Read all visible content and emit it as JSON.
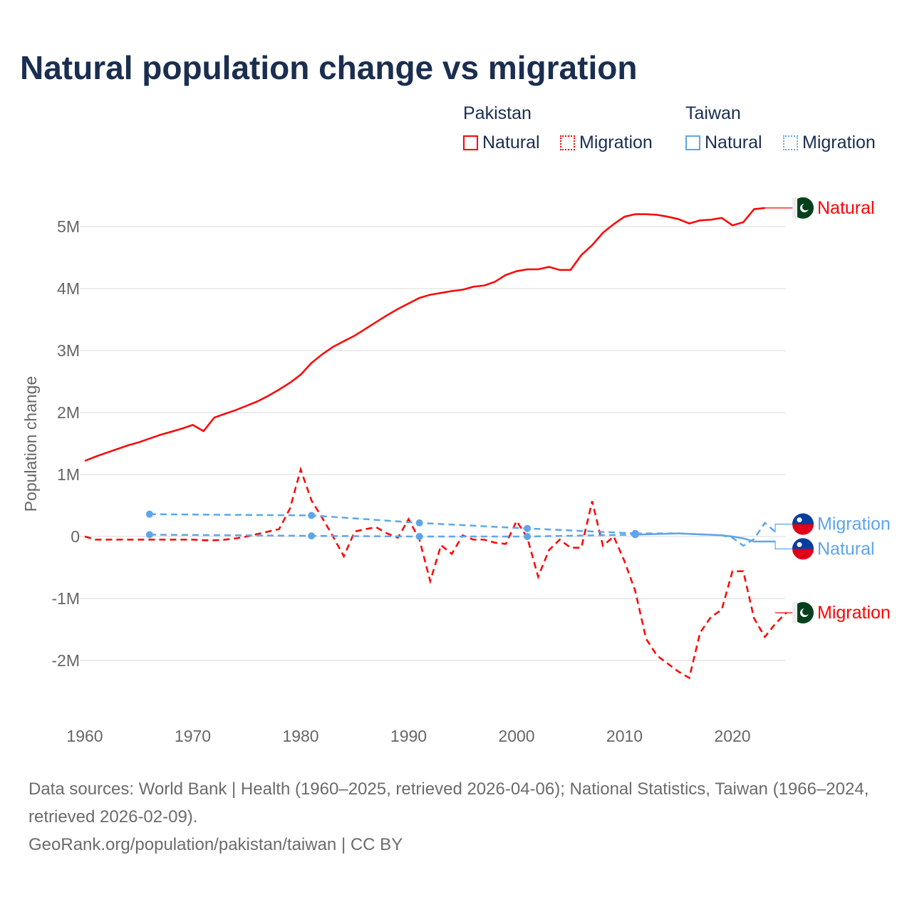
{
  "title": "Natural population change vs migration",
  "legend": {
    "groups": [
      {
        "name": "Pakistan",
        "color": "#ff0000",
        "items": [
          "Natural",
          "Migration"
        ]
      },
      {
        "name": "Taiwan",
        "color": "#5ea5ea",
        "items": [
          "Natural",
          "Migration"
        ]
      }
    ]
  },
  "source": {
    "line1": "Data sources: World Bank | Health (1960–2025, retrieved 2026-04-06); National Statistics, Taiwan (1966–2024, retrieved 2026-02-09).",
    "line2": "GeoRank.org/population/pakistan/taiwan | CC BY"
  },
  "chart_data": {
    "type": "line",
    "title": "Natural population change vs migration",
    "ylabel": "Population change",
    "xlabel": "",
    "xlim": [
      1960,
      2025
    ],
    "ylim": [
      -2.9,
      5.6
    ],
    "y_unit": "millions",
    "x_ticks": [
      1960,
      1970,
      1980,
      1990,
      2000,
      2010,
      2020
    ],
    "y_ticks": [
      {
        "v": -2,
        "label": "-2M"
      },
      {
        "v": -1,
        "label": "-1M"
      },
      {
        "v": 0,
        "label": "0"
      },
      {
        "v": 1,
        "label": "1M"
      },
      {
        "v": 2,
        "label": "2M"
      },
      {
        "v": 3,
        "label": "3M"
      },
      {
        "v": 4,
        "label": "4M"
      },
      {
        "v": 5,
        "label": "5M"
      }
    ],
    "grid": true,
    "series": [
      {
        "name": "Pakistan Natural",
        "label": "Natural",
        "country": "Pakistan",
        "color": "#ff0000",
        "dash": false,
        "x": [
          1960,
          1961,
          1962,
          1963,
          1964,
          1965,
          1966,
          1967,
          1968,
          1969,
          1970,
          1971,
          1972,
          1973,
          1974,
          1975,
          1976,
          1977,
          1978,
          1979,
          1980,
          1981,
          1982,
          1983,
          1984,
          1985,
          1986,
          1987,
          1988,
          1989,
          1990,
          1991,
          1992,
          1993,
          1994,
          1995,
          1996,
          1997,
          1998,
          1999,
          2000,
          2001,
          2002,
          2003,
          2004,
          2005,
          2006,
          2007,
          2008,
          2009,
          2010,
          2011,
          2012,
          2013,
          2014,
          2015,
          2016,
          2017,
          2018,
          2019,
          2020,
          2021,
          2022,
          2023
        ],
        "y": [
          1.22,
          1.29,
          1.35,
          1.41,
          1.47,
          1.52,
          1.58,
          1.64,
          1.69,
          1.74,
          1.8,
          1.7,
          1.92,
          1.98,
          2.04,
          2.11,
          2.18,
          2.27,
          2.37,
          2.48,
          2.61,
          2.8,
          2.94,
          3.06,
          3.15,
          3.24,
          3.35,
          3.46,
          3.57,
          3.67,
          3.76,
          3.85,
          3.9,
          3.93,
          3.96,
          3.98,
          4.03,
          4.05,
          4.11,
          4.22,
          4.28,
          4.31,
          4.31,
          4.35,
          4.3,
          4.3,
          4.54,
          4.7,
          4.9,
          5.04,
          5.16,
          5.2,
          5.2,
          5.19,
          5.16,
          5.12,
          5.05,
          5.1,
          5.11,
          5.14,
          5.02,
          5.07,
          5.28,
          5.3
        ]
      },
      {
        "name": "Pakistan Migration",
        "label": "Migration",
        "country": "Pakistan",
        "color": "#ff0000",
        "dash": true,
        "x": [
          1960,
          1961,
          1962,
          1963,
          1964,
          1965,
          1966,
          1967,
          1968,
          1969,
          1970,
          1971,
          1972,
          1973,
          1974,
          1975,
          1976,
          1977,
          1978,
          1979,
          1980,
          1981,
          1982,
          1983,
          1984,
          1985,
          1986,
          1987,
          1988,
          1989,
          1990,
          1991,
          1992,
          1993,
          1994,
          1995,
          1996,
          1997,
          1998,
          1999,
          2000,
          2001,
          2002,
          2003,
          2004,
          2005,
          2006,
          2007,
          2008,
          2009,
          2010,
          2011,
          2012,
          2013,
          2014,
          2015,
          2016,
          2017,
          2018,
          2019,
          2020,
          2021,
          2022,
          2023,
          2024,
          2025
        ],
        "y": [
          0,
          -0.05,
          -0.05,
          -0.05,
          -0.05,
          -0.05,
          -0.05,
          -0.05,
          -0.05,
          -0.05,
          -0.05,
          -0.06,
          -0.06,
          -0.05,
          -0.03,
          0,
          0.04,
          0.08,
          0.12,
          0.45,
          1.08,
          0.58,
          0.3,
          0,
          -0.32,
          0.08,
          0.12,
          0.15,
          0.05,
          -0.02,
          0.28,
          -0.05,
          -0.72,
          -0.14,
          -0.28,
          0.02,
          -0.05,
          -0.05,
          -0.1,
          -0.12,
          0.25,
          -0.02,
          -0.65,
          -0.22,
          -0.05,
          -0.18,
          -0.18,
          0.57,
          -0.15,
          0,
          -0.4,
          -0.88,
          -1.65,
          -1.92,
          -2.05,
          -2.18,
          -2.28,
          -1.55,
          -1.3,
          -1.18,
          -0.56,
          -0.56,
          -1.32,
          -1.62,
          -1.4,
          -1.23
        ]
      },
      {
        "name": "Taiwan Natural",
        "label": "Natural",
        "country": "Taiwan",
        "color": "#5ea5ea",
        "dash": false,
        "x": [
          1966,
          1981,
          1991,
          2001,
          2011,
          2015,
          2019,
          2020,
          2021,
          2022,
          2023,
          2024
        ],
        "y": [
          0.03,
          0.01,
          0,
          0,
          0.03,
          0.05,
          0.02,
          0,
          -0.03,
          -0.08,
          -0.08,
          -0.08
        ],
        "sparse_until": 2011
      },
      {
        "name": "Taiwan Migration",
        "label": "Migration",
        "country": "Taiwan",
        "color": "#5ea5ea",
        "dash": true,
        "x": [
          1966,
          1981,
          1991,
          2001,
          2011,
          2015,
          2019,
          2020,
          2021,
          2022,
          2023,
          2024
        ],
        "y": [
          0.36,
          0.34,
          0.22,
          0.13,
          0.05,
          0.05,
          0.02,
          -0.02,
          -0.15,
          -0.04,
          0.22,
          0.07
        ],
        "sparse_until": 2011
      }
    ],
    "end_labels": [
      {
        "series": 0,
        "text": "Natural",
        "color": "#ff0000",
        "flag": "pakistan",
        "v": 5.3
      },
      {
        "series": 3,
        "text": "Migration",
        "color": "#5ea5ea",
        "flag": "taiwan",
        "v": 0.2
      },
      {
        "series": 2,
        "text": "Natural",
        "color": "#5ea5ea",
        "flag": "taiwan",
        "v": -0.2
      },
      {
        "series": 1,
        "text": "Migration",
        "color": "#ff0000",
        "flag": "pakistan",
        "v": -1.23
      }
    ]
  }
}
